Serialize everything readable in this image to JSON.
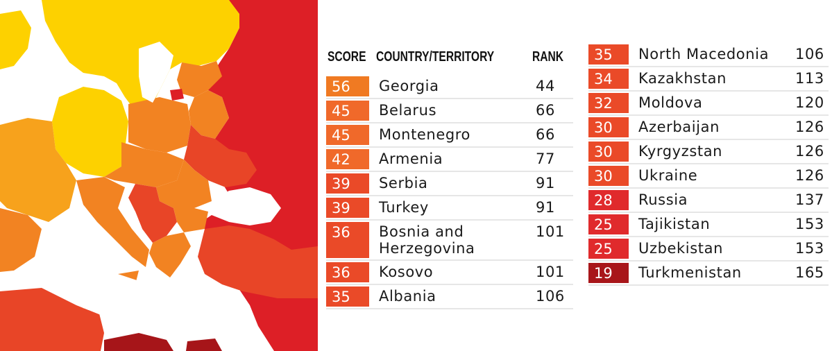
{
  "chart_data": {
    "type": "table",
    "columns": [
      "SCORE",
      "COUNTRY/TERRITORY",
      "RANK"
    ],
    "rows": [
      {
        "score": 56,
        "country": "Georgia",
        "rank": 44
      },
      {
        "score": 45,
        "country": "Belarus",
        "rank": 66
      },
      {
        "score": 45,
        "country": "Montenegro",
        "rank": 66
      },
      {
        "score": 42,
        "country": "Armenia",
        "rank": 77
      },
      {
        "score": 39,
        "country": "Serbia",
        "rank": 91
      },
      {
        "score": 39,
        "country": "Turkey",
        "rank": 91
      },
      {
        "score": 36,
        "country": "Bosnia and Herzegovina",
        "rank": 101
      },
      {
        "score": 36,
        "country": "Kosovo",
        "rank": 101
      },
      {
        "score": 35,
        "country": "Albania",
        "rank": 106
      },
      {
        "score": 35,
        "country": "North Macedonia",
        "rank": 106
      },
      {
        "score": 34,
        "country": "Kazakhstan",
        "rank": 113
      },
      {
        "score": 32,
        "country": "Moldova",
        "rank": 120
      },
      {
        "score": 30,
        "country": "Azerbaijan",
        "rank": 126
      },
      {
        "score": 30,
        "country": "Kyrgyzstan",
        "rank": 126
      },
      {
        "score": 30,
        "country": "Ukraine",
        "rank": 126
      },
      {
        "score": 28,
        "country": "Russia",
        "rank": 137
      },
      {
        "score": 25,
        "country": "Tajikistan",
        "rank": 153
      },
      {
        "score": 25,
        "country": "Uzbekistan",
        "rank": 153
      },
      {
        "score": 19,
        "country": "Turkmenistan",
        "rank": 165
      }
    ],
    "score_colors": [
      {
        "min": 50,
        "color": "#f07a22"
      },
      {
        "min": 40,
        "color": "#f0692a"
      },
      {
        "min": 30,
        "color": "#ea4a28"
      },
      {
        "min": 20,
        "color": "#e02a2c"
      },
      {
        "min": 0,
        "color": "#a8161a"
      }
    ]
  },
  "map": {
    "colors": {
      "sea": "#ffffff",
      "high": "#fdd100",
      "mid_high": "#f7a21c",
      "mid": "#f28322",
      "mid_low": "#ee6a27",
      "low": "#e84527",
      "lowest": "#dd1f26",
      "darkest": "#a61519",
      "border": "#ffffff"
    }
  }
}
